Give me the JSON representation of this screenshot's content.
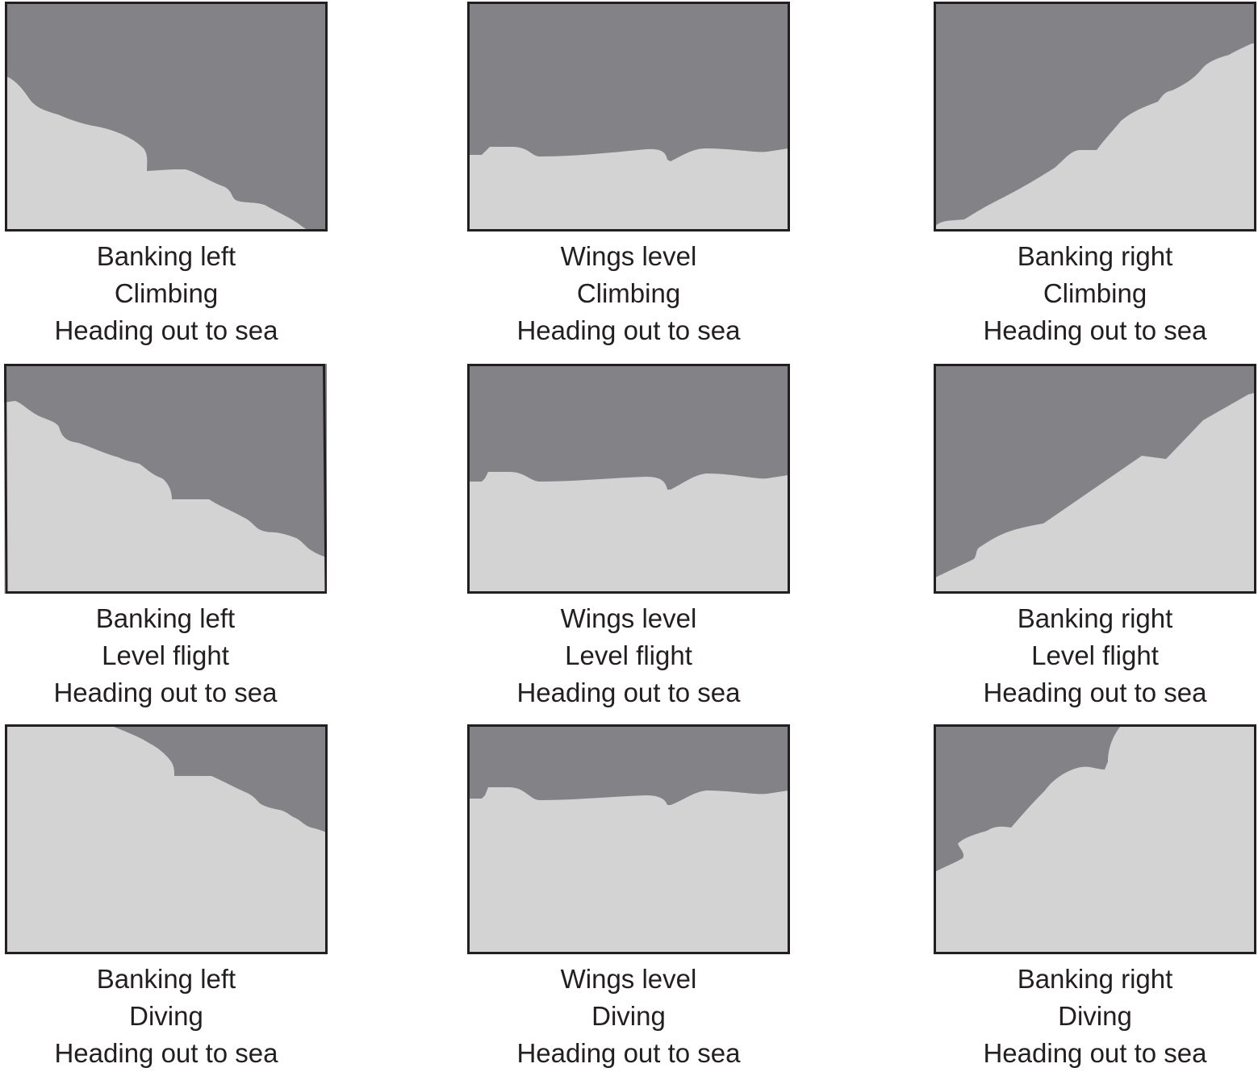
{
  "colors": {
    "sky": "#838286",
    "land": "#d3d3d3",
    "frame": "#231f20",
    "text": "#231f20"
  },
  "panels": [
    {
      "bank": "Banking left",
      "pitch": "Climbing",
      "heading": "Heading out to sea"
    },
    {
      "bank": "Wings level",
      "pitch": "Climbing",
      "heading": "Heading out to sea"
    },
    {
      "bank": "Banking right",
      "pitch": "Climbing",
      "heading": "Heading out to sea"
    },
    {
      "bank": "Banking left",
      "pitch": "Level flight",
      "heading": "Heading out to sea"
    },
    {
      "bank": "Wings level",
      "pitch": "Level flight",
      "heading": "Heading out to sea"
    },
    {
      "bank": "Banking right",
      "pitch": "Level flight",
      "heading": "Heading out to sea"
    },
    {
      "bank": "Banking left",
      "pitch": "Diving",
      "heading": "Heading out to sea"
    },
    {
      "bank": "Wings level",
      "pitch": "Diving",
      "heading": "Heading out to sea"
    },
    {
      "bank": "Banking right",
      "pitch": "Diving",
      "heading": "Heading out to sea"
    }
  ]
}
